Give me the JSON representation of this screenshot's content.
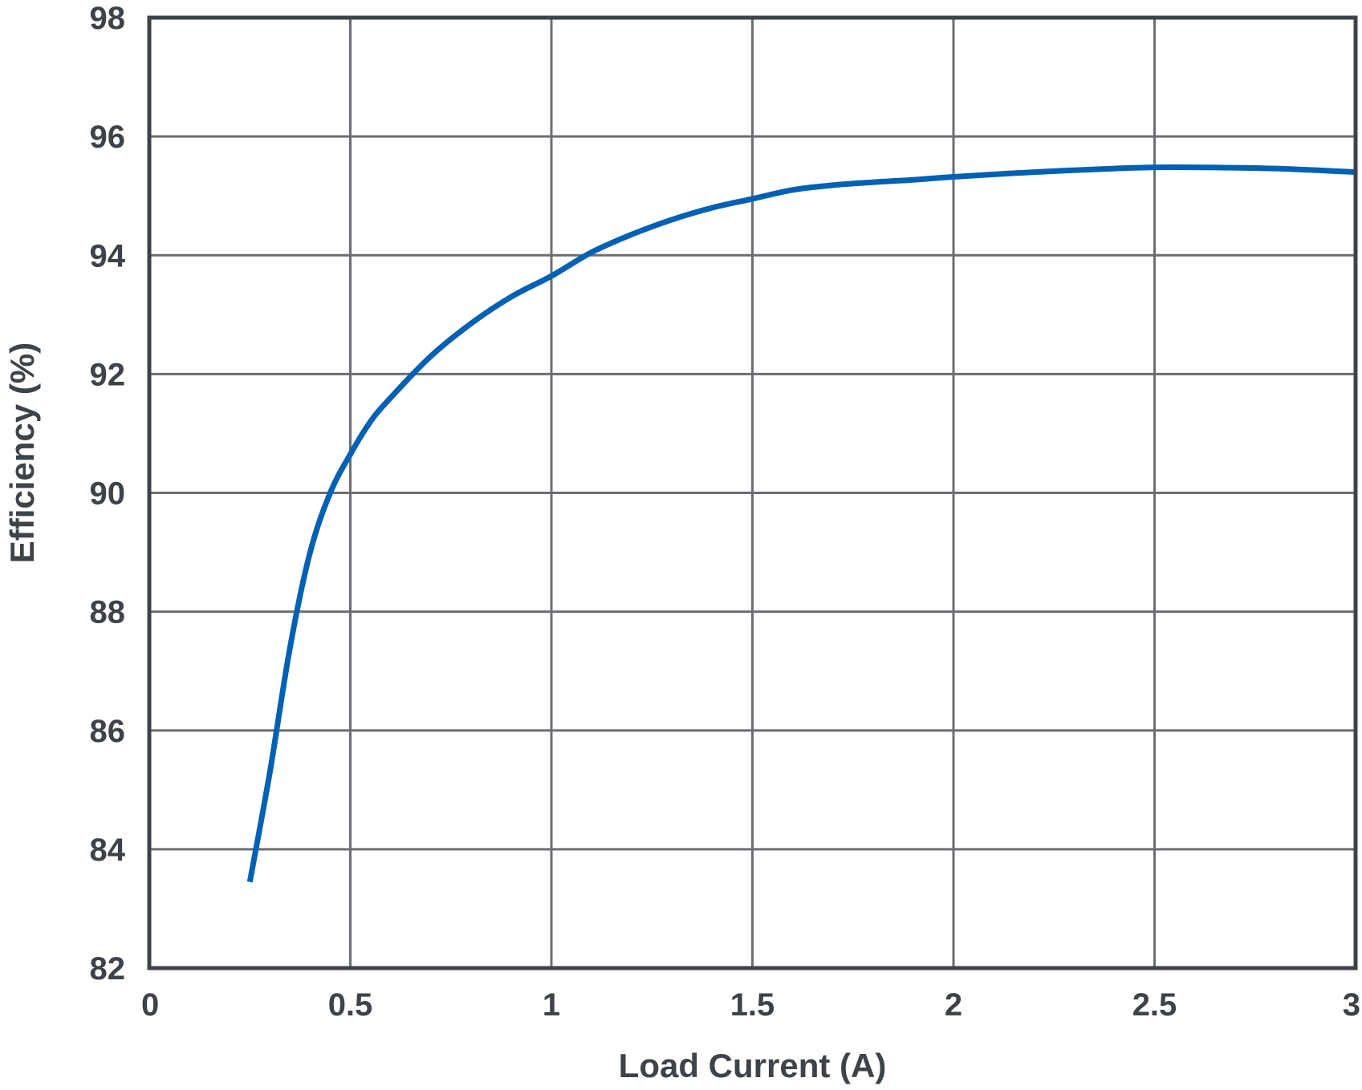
{
  "chart_data": {
    "type": "line",
    "xlabel": "Load Current (A)",
    "ylabel": "Efficiency (%)",
    "xlim": [
      0,
      3
    ],
    "ylim": [
      82,
      98
    ],
    "x_ticks": [
      "0",
      "0.5",
      "1",
      "1.5",
      "2",
      "2.5",
      "3"
    ],
    "y_ticks": [
      "98",
      "96",
      "94",
      "92",
      "90",
      "88",
      "86",
      "84",
      "82"
    ],
    "grid": true,
    "legend": "none",
    "series": [
      {
        "color": "#0061b4",
        "x": [
          0.25,
          0.3,
          0.35,
          0.4,
          0.45,
          0.5,
          0.55,
          0.6,
          0.7,
          0.8,
          0.9,
          1.0,
          1.1,
          1.2,
          1.3,
          1.4,
          1.5,
          1.6,
          1.7,
          1.8,
          1.9,
          2.0,
          2.2,
          2.4,
          2.5,
          2.6,
          2.8,
          3.0
        ],
        "y": [
          83.45,
          85.3,
          87.4,
          89.0,
          90.0,
          90.65,
          91.2,
          91.6,
          92.3,
          92.85,
          93.3,
          93.65,
          94.05,
          94.35,
          94.6,
          94.8,
          94.95,
          95.1,
          95.18,
          95.23,
          95.27,
          95.32,
          95.4,
          95.46,
          95.48,
          95.48,
          95.46,
          95.4
        ]
      }
    ]
  }
}
